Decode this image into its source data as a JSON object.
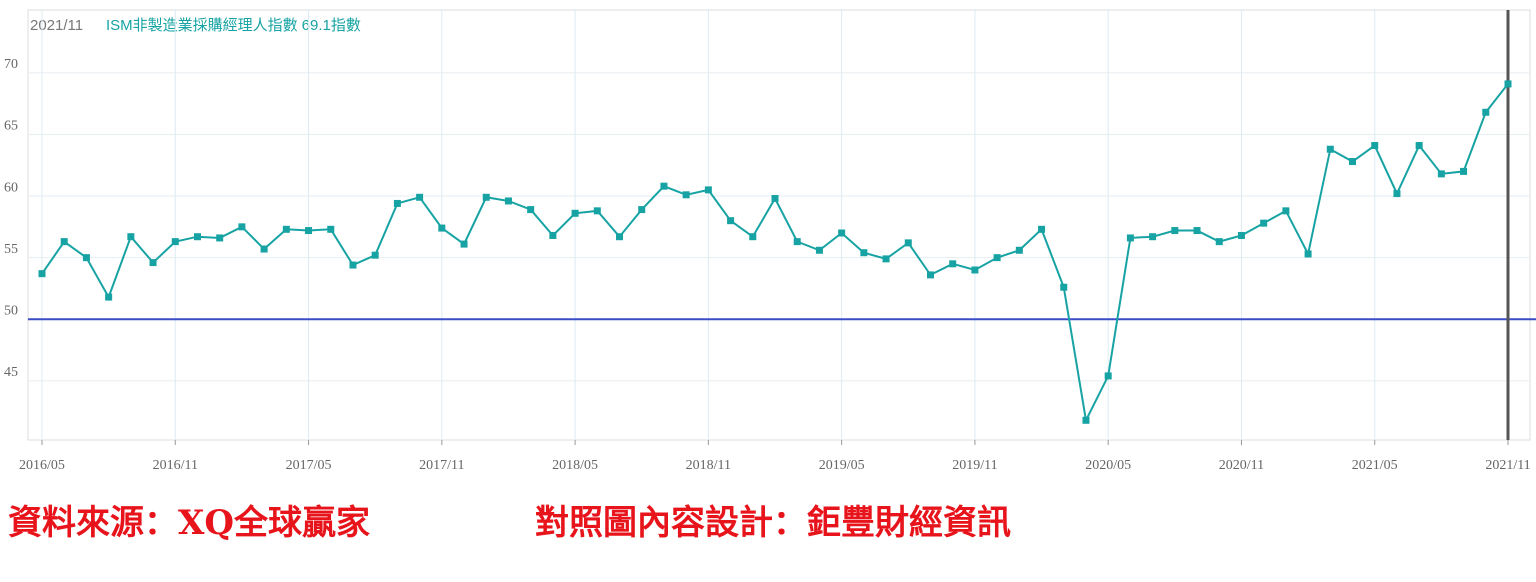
{
  "chart_data": {
    "type": "line",
    "header_date": "2021/11",
    "header_value": "69.1指數",
    "source": "資料來源：XQ全球贏家",
    "credit": "對照圖內容設計：鉅豐財經資訊",
    "categories": [
      "2016/05",
      null,
      null,
      null,
      null,
      null,
      "2016/11",
      null,
      null,
      null,
      null,
      null,
      "2017/05",
      null,
      null,
      null,
      null,
      null,
      "2017/11",
      null,
      null,
      null,
      null,
      null,
      "2018/05",
      null,
      null,
      null,
      null,
      null,
      "2018/11",
      null,
      null,
      null,
      null,
      null,
      "2019/05",
      null,
      null,
      null,
      null,
      null,
      "2019/11",
      null,
      null,
      null,
      null,
      null,
      "2020/05",
      null,
      null,
      null,
      null,
      null,
      "2020/11",
      null,
      null,
      null,
      null,
      null,
      "2021/05",
      null,
      null,
      null,
      null,
      null,
      "2021/11"
    ],
    "series": [
      {
        "name": "ISM非製造業採購經理人指數",
        "color": "#17a3a3",
        "values": [
          53.7,
          56.3,
          55.0,
          51.8,
          56.7,
          54.6,
          56.3,
          56.7,
          56.6,
          57.5,
          55.7,
          57.3,
          57.2,
          57.3,
          54.4,
          55.2,
          59.4,
          59.9,
          57.4,
          56.1,
          59.9,
          59.6,
          58.9,
          56.8,
          58.6,
          58.8,
          56.7,
          58.9,
          60.8,
          60.1,
          60.5,
          58.0,
          56.7,
          59.8,
          56.3,
          55.6,
          57.0,
          55.4,
          54.9,
          56.2,
          53.6,
          54.5,
          54.0,
          55.0,
          55.6,
          57.3,
          52.6,
          41.8,
          45.4,
          56.6,
          56.7,
          57.2,
          57.2,
          56.3,
          56.8,
          57.8,
          58.8,
          55.3,
          63.8,
          62.8,
          64.1,
          60.2,
          64.1,
          61.8,
          62.0,
          66.8,
          69.1
        ]
      }
    ],
    "reference_line": 50,
    "reference_color": "#3b4bc8",
    "ylim": [
      40.2,
      75.1
    ],
    "yticks": [
      45,
      50,
      55,
      60,
      65,
      70
    ],
    "grid": true
  }
}
